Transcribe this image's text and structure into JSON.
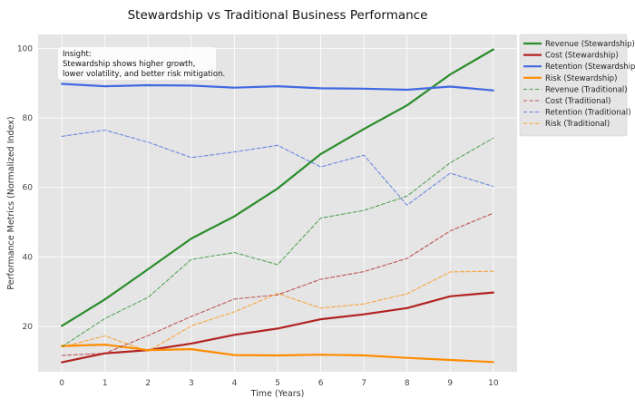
{
  "chart_data": {
    "type": "line",
    "title": "Stewardship vs Traditional Business Performance",
    "xlabel": "Time (Years)",
    "ylabel": "Performance Metrics (Normalized Index)",
    "x": [
      0,
      1,
      2,
      3,
      4,
      5,
      6,
      7,
      8,
      9,
      10
    ],
    "xlim": [
      -0.55,
      10.55
    ],
    "ylim": [
      7,
      104
    ],
    "yticks": [
      20,
      40,
      60,
      80,
      100
    ],
    "grid": true,
    "legend_placement": "outside-top-right",
    "annotation": {
      "lines": [
        "Insight:",
        "Stewardship shows higher growth,",
        "lower volatility, and better risk mitigation."
      ]
    },
    "series": [
      {
        "name": "Revenue (Stewardship)",
        "color": "#2a8c2a",
        "style": "solid",
        "values": [
          20.2,
          27.8,
          36.5,
          45.3,
          51.7,
          59.7,
          69.6,
          76.8,
          83.6,
          92.5,
          99.7
        ]
      },
      {
        "name": "Cost (Stewardship)",
        "color": "#b22222",
        "style": "solid",
        "values": [
          9.7,
          12.3,
          13.2,
          15.1,
          17.6,
          19.4,
          22.1,
          23.5,
          25.3,
          28.7,
          29.8
        ]
      },
      {
        "name": "Retention (Stewardship)",
        "color": "#4169e1",
        "style": "solid",
        "values": [
          89.8,
          89.1,
          89.4,
          89.3,
          88.7,
          89.1,
          88.5,
          88.4,
          88.1,
          89.0,
          87.9
        ]
      },
      {
        "name": "Risk (Stewardship)",
        "color": "#ff8c00",
        "style": "solid",
        "values": [
          14.4,
          14.8,
          13.2,
          13.5,
          11.8,
          11.7,
          11.9,
          11.7,
          11.0,
          10.4,
          9.8
        ]
      },
      {
        "name": "Revenue (Traditional)",
        "color": "#2a8c2a",
        "style": "dashed",
        "values": [
          14.2,
          22.3,
          28.4,
          39.3,
          41.3,
          37.8,
          51.2,
          53.4,
          57.5,
          67.1,
          74.2
        ]
      },
      {
        "name": "Cost (Traditional)",
        "color": "#b22222",
        "style": "dashed",
        "values": [
          11.7,
          12.3,
          17.4,
          22.9,
          27.9,
          29.1,
          33.6,
          35.8,
          39.6,
          47.5,
          52.6
        ]
      },
      {
        "name": "Retention (Traditional)",
        "color": "#4169e1",
        "style": "dashed",
        "values": [
          74.7,
          76.5,
          73.0,
          68.6,
          70.2,
          72.1,
          65.9,
          69.3,
          54.9,
          64.1,
          60.3
        ]
      },
      {
        "name": "Risk (Traditional)",
        "color": "#ff8c00",
        "style": "dashed",
        "values": [
          14.1,
          17.3,
          12.9,
          20.2,
          24.2,
          29.5,
          25.3,
          26.5,
          29.4,
          35.7,
          35.9
        ]
      }
    ]
  }
}
